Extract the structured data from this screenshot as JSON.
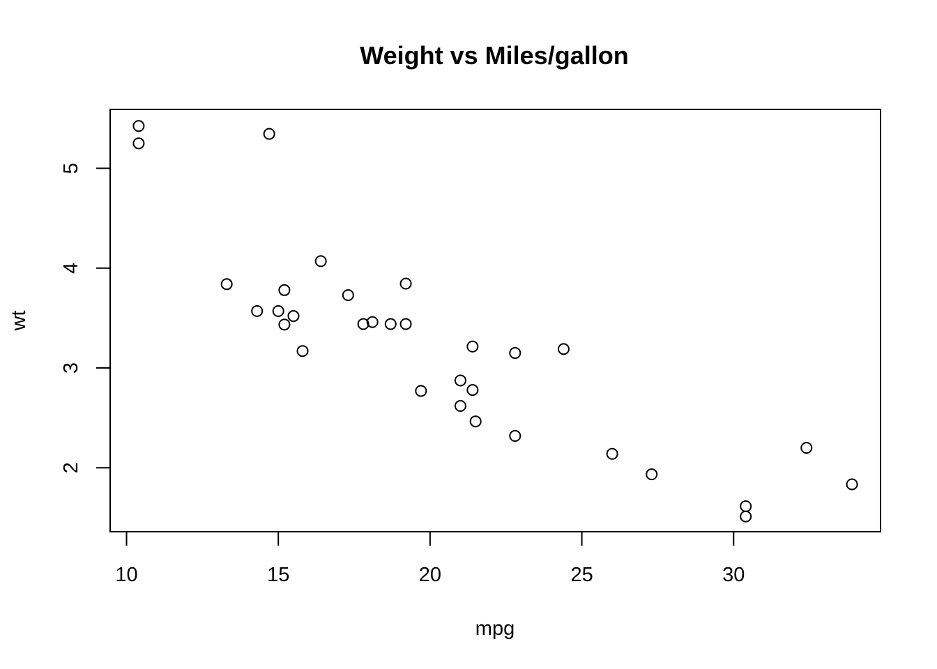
{
  "chart_data": {
    "type": "scatter",
    "title": "Weight vs Miles/gallon",
    "xlabel": "mpg",
    "ylabel": "wt",
    "xlim": [
      9.46,
      34.84
    ],
    "ylim": [
      1.36,
      5.59
    ],
    "xticks": [
      10,
      15,
      20,
      25,
      30
    ],
    "yticks": [
      2,
      3,
      4,
      5
    ],
    "grid": false,
    "series": [
      {
        "points": [
          [
            21.0,
            2.62
          ],
          [
            21.0,
            2.875
          ],
          [
            22.8,
            2.32
          ],
          [
            21.4,
            3.215
          ],
          [
            18.7,
            3.44
          ],
          [
            18.1,
            3.46
          ],
          [
            14.3,
            3.57
          ],
          [
            24.4,
            3.19
          ],
          [
            22.8,
            3.15
          ],
          [
            19.2,
            3.44
          ],
          [
            17.8,
            3.44
          ],
          [
            16.4,
            4.07
          ],
          [
            17.3,
            3.73
          ],
          [
            15.2,
            3.78
          ],
          [
            10.4,
            5.25
          ],
          [
            10.4,
            5.424
          ],
          [
            14.7,
            5.345
          ],
          [
            32.4,
            2.2
          ],
          [
            30.4,
            1.615
          ],
          [
            33.9,
            1.835
          ],
          [
            21.5,
            2.465
          ],
          [
            15.5,
            3.52
          ],
          [
            15.2,
            3.435
          ],
          [
            13.3,
            3.84
          ],
          [
            19.2,
            3.845
          ],
          [
            27.3,
            1.935
          ],
          [
            26.0,
            2.14
          ],
          [
            30.4,
            1.513
          ],
          [
            15.8,
            3.17
          ],
          [
            19.7,
            2.77
          ],
          [
            15.0,
            3.57
          ],
          [
            21.4,
            2.78
          ]
        ]
      }
    ]
  }
}
